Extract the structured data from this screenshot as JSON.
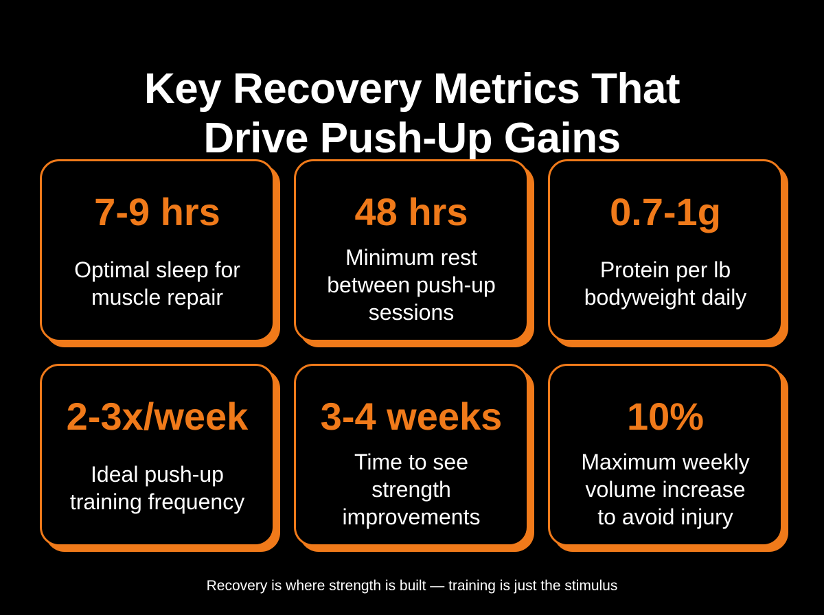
{
  "title": {
    "line1": "Key Recovery Metrics That",
    "line2": "Drive Push-Up Gains"
  },
  "cards": [
    {
      "metric": "7-9 hrs",
      "description": [
        "Optimal sleep for",
        "muscle repair"
      ]
    },
    {
      "metric": "48 hrs",
      "description": [
        "Minimum rest",
        "between push-up",
        "sessions"
      ]
    },
    {
      "metric": "0.7-1g",
      "description": [
        "Protein per lb",
        "bodyweight daily"
      ]
    },
    {
      "metric": "2-3x/week",
      "description": [
        "Ideal push-up",
        "training frequency"
      ]
    },
    {
      "metric": "3-4 weeks",
      "description": [
        "Time to see",
        "strength",
        "improvements"
      ]
    },
    {
      "metric": "10%",
      "description": [
        "Maximum weekly",
        "volume increase",
        "to avoid injury"
      ]
    }
  ],
  "footer": "Recovery is where strength is built — training is just the stimulus",
  "colors": {
    "background": "#000000",
    "accent": "#f07a1a",
    "text": "#ffffff"
  }
}
